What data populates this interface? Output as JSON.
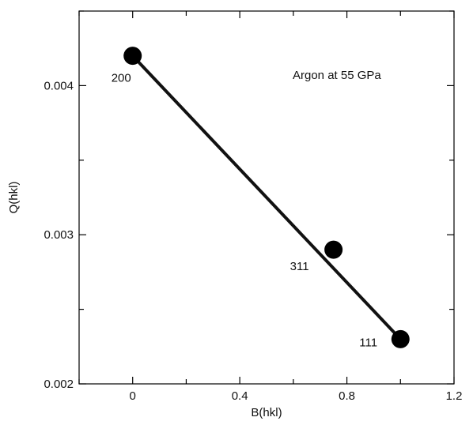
{
  "chart_data": {
    "type": "scatter",
    "title": "",
    "xlabel": "B(hkl)",
    "ylabel": "Q(hkl)",
    "xlim": [
      -0.2,
      1.2
    ],
    "ylim": [
      0.002,
      0.0045
    ],
    "x_ticks": [
      {
        "value": 0,
        "label": "0"
      },
      {
        "value": 0.4,
        "label": "0.4"
      },
      {
        "value": 0.8,
        "label": "0.8"
      },
      {
        "value": 1.2,
        "label": "1.2"
      }
    ],
    "x_minor_ticks": [
      -0.2,
      0.2,
      0.6,
      1.0
    ],
    "y_ticks": [
      {
        "value": 0.002,
        "label": "0.002"
      },
      {
        "value": 0.003,
        "label": "0.003"
      },
      {
        "value": 0.004,
        "label": "0.004"
      }
    ],
    "y_minor_ticks": [
      0.0025,
      0.0035,
      0.0045
    ],
    "grid": false,
    "points": [
      {
        "label": "200",
        "x": 0.0,
        "y": 0.0042
      },
      {
        "label": "311",
        "x": 0.75,
        "y": 0.0029
      },
      {
        "label": "111",
        "x": 1.0,
        "y": 0.0023
      }
    ],
    "fit_line": {
      "x": [
        0.0,
        1.0
      ],
      "y": [
        0.0042,
        0.0023
      ]
    },
    "annotation": "Argon at 55 GPa",
    "colors": {
      "marker": "#000000",
      "line": "#111111",
      "axis": "#000000"
    }
  }
}
